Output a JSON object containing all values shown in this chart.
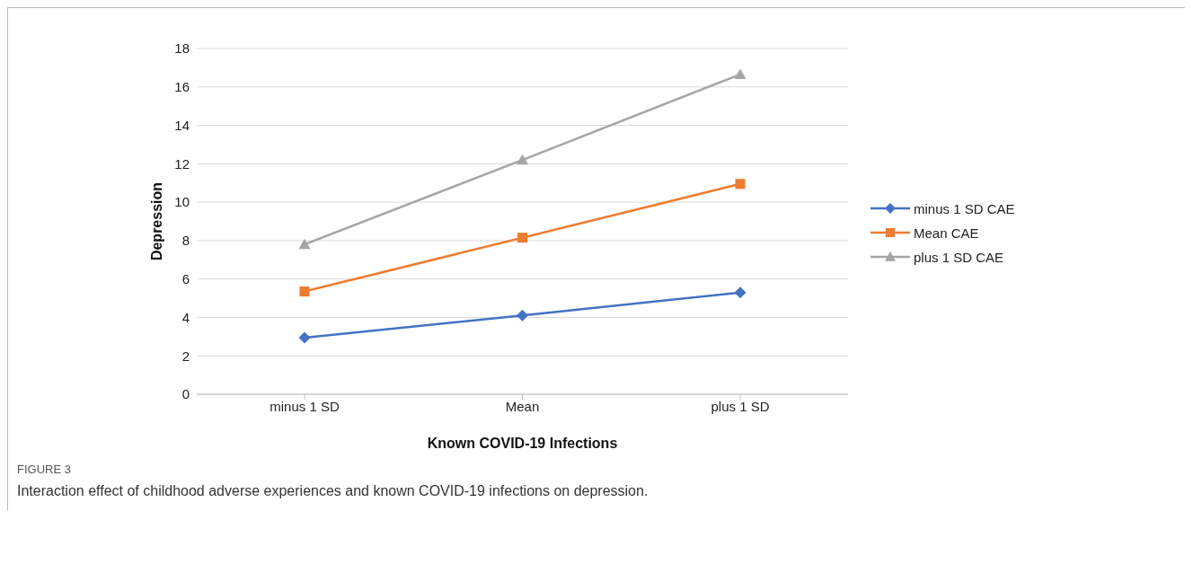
{
  "chart_data": {
    "type": "line",
    "xlabel": "Known COVID-19 Infections",
    "ylabel": "Depression",
    "categories": [
      "minus 1 SD",
      "Mean",
      "plus 1 SD"
    ],
    "series": [
      {
        "name": "minus 1 SD CAE",
        "color": "#4472c4",
        "values": [
          2.95,
          4.1,
          5.3
        ],
        "marker": "diamond"
      },
      {
        "name": "Mean CAE",
        "color": "#ed7d31",
        "values": [
          5.35,
          8.15,
          10.95
        ],
        "marker": "square"
      },
      {
        "name": "plus 1 SD CAE",
        "color": "#a5a5a5",
        "values": [
          7.8,
          12.2,
          16.65
        ],
        "marker": "triangle"
      }
    ],
    "ylim": [
      0,
      18
    ],
    "yticks": [
      0,
      2,
      4,
      6,
      8,
      10,
      12,
      14,
      16,
      18
    ],
    "grid": "y",
    "legend": "right",
    "line_style": "solid",
    "annotations": [
      "FIGURE 3",
      "Interaction effect of childhood adverse experiences and known COVID-19 infections on depression."
    ]
  }
}
